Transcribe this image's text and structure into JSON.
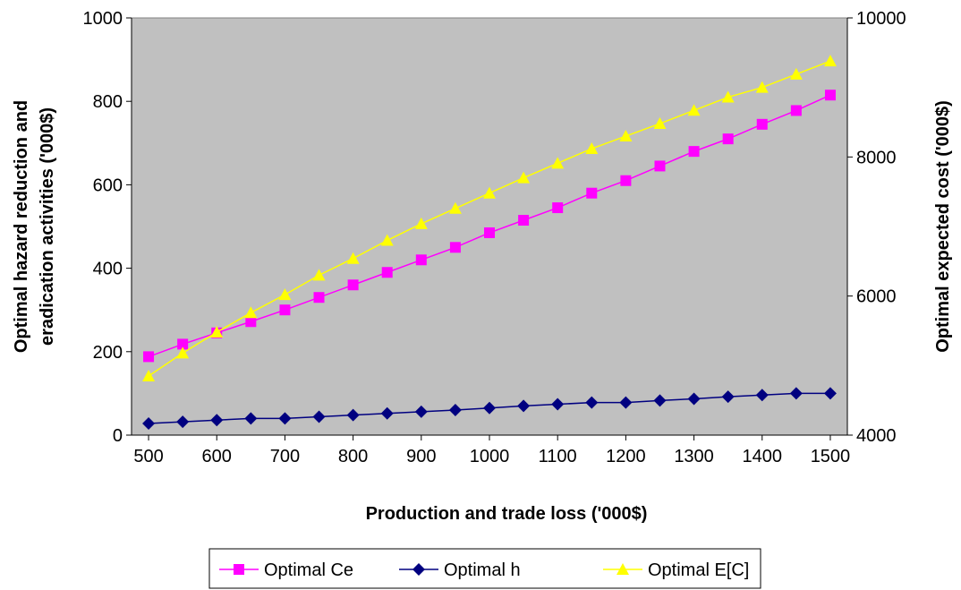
{
  "chart_data": {
    "type": "line",
    "title": "",
    "xlabel": "Production and trade loss ('000$)",
    "ylabel_left_lines": [
      "Optimal hazard reduction and",
      "eradication activities ('000$)"
    ],
    "ylabel_right": "Optimal expected cost ('000$)",
    "x": [
      500,
      550,
      600,
      650,
      700,
      750,
      800,
      850,
      900,
      950,
      1000,
      1050,
      1100,
      1150,
      1200,
      1250,
      1300,
      1350,
      1400,
      1450,
      1500
    ],
    "x_ticks": [
      "500",
      "600",
      "700",
      "800",
      "900",
      "1000",
      "1100",
      "1200",
      "1300",
      "1400",
      "1500"
    ],
    "y_left_ticks": [
      "0",
      "200",
      "400",
      "600",
      "800",
      "1000"
    ],
    "y_right_ticks": [
      "4000",
      "6000",
      "8000",
      "10000"
    ],
    "ylim_left": [
      0,
      1000
    ],
    "ylim_right": [
      4000,
      10000
    ],
    "plot_background": "#c0c0c0",
    "grid": false,
    "legend_position": "bottom",
    "series": [
      {
        "name": "Optimal Ce",
        "axis": "left",
        "color": "#ff00ff",
        "marker": "square",
        "values": [
          188,
          218,
          245,
          272,
          300,
          330,
          360,
          390,
          420,
          450,
          485,
          515,
          545,
          580,
          610,
          645,
          680,
          710,
          745,
          778,
          815
        ]
      },
      {
        "name": "Optimal h",
        "axis": "left",
        "color": "#000080",
        "marker": "diamond",
        "values": [
          28,
          32,
          36,
          40,
          40,
          44,
          48,
          52,
          56,
          60,
          65,
          70,
          74,
          78,
          78,
          83,
          87,
          92,
          96,
          100,
          100
        ]
      },
      {
        "name": "Optimal E[C]",
        "axis": "right",
        "color": "#ffff00",
        "marker": "triangle",
        "values": [
          4850,
          5180,
          5480,
          5760,
          6020,
          6300,
          6540,
          6800,
          7040,
          7260,
          7480,
          7700,
          7910,
          8120,
          8300,
          8480,
          8670,
          8860,
          9000,
          9190,
          9380
        ]
      }
    ]
  }
}
